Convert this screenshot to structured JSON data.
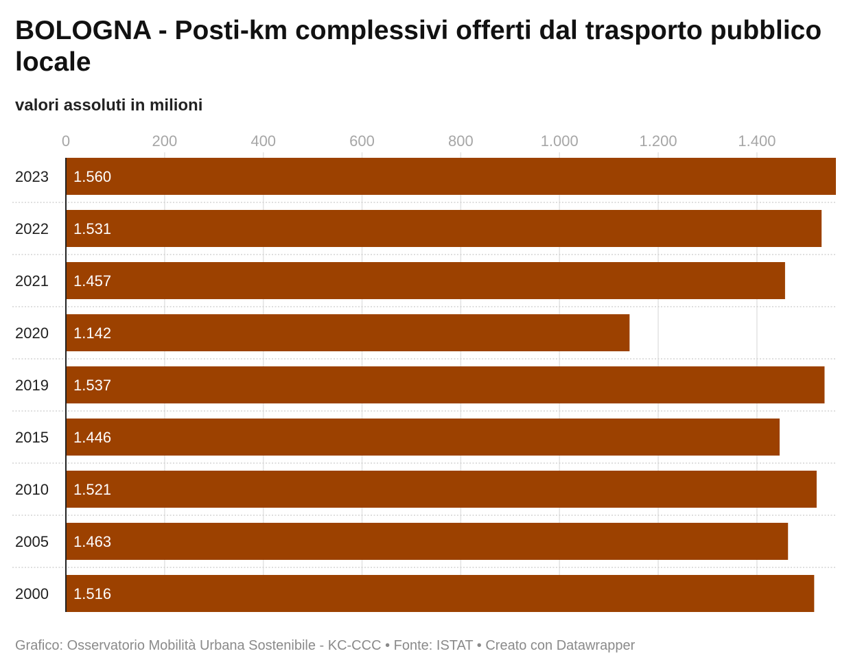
{
  "header": {
    "title": "BOLOGNA - Posti-km complessivi offerti dal trasporto pubblico locale",
    "subtitle": "valori assoluti in milioni"
  },
  "footer": {
    "credit": "Grafico: Osservatorio Mobilità Urbana Sostenibile - KC-CCC • Fonte: ISTAT • Creato con Datawrapper"
  },
  "colors": {
    "bar": "#9c4100",
    "bar_label": "#ffffff",
    "tick_label": "#a6a6a6",
    "grid": "#e3e3e3",
    "row_separator": "#c9c9c9",
    "axis_line": "#222222"
  },
  "chart_data": {
    "type": "bar",
    "orientation": "horizontal",
    "categories": [
      "2023",
      "2022",
      "2021",
      "2020",
      "2019",
      "2015",
      "2010",
      "2005",
      "2000"
    ],
    "values": [
      1560,
      1531,
      1457,
      1142,
      1537,
      1446,
      1521,
      1463,
      1516
    ],
    "value_labels": [
      "1.560",
      "1.531",
      "1.457",
      "1.142",
      "1.537",
      "1.446",
      "1.521",
      "1.463",
      "1.516"
    ],
    "x_ticks": [
      0,
      200,
      400,
      600,
      800,
      1000,
      1200,
      1400
    ],
    "x_tick_labels": [
      "0",
      "200",
      "400",
      "600",
      "800",
      "1.000",
      "1.200",
      "1.400"
    ],
    "xlim": [
      0,
      1560
    ],
    "grid": true,
    "tick_position": "top"
  }
}
